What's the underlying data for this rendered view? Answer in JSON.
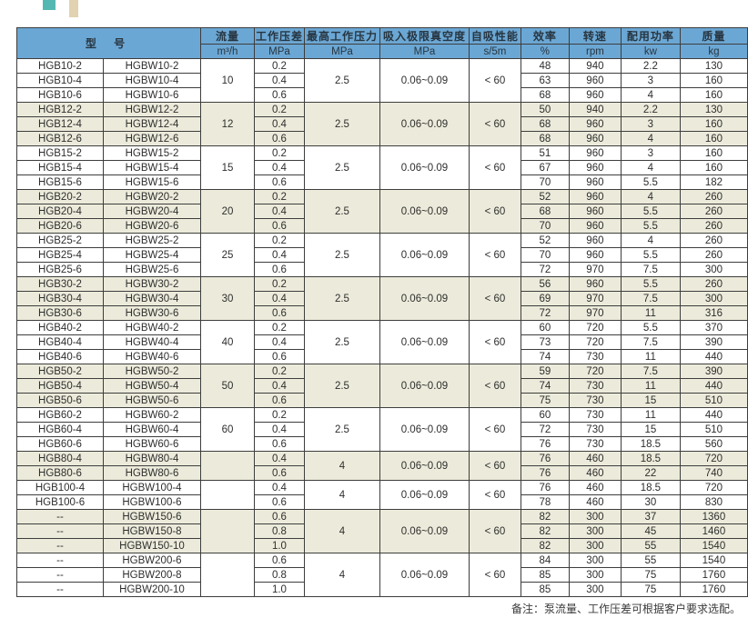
{
  "theme": {
    "header_blue": "#6ba7d4",
    "group_beige": "#ecebdb",
    "border_dark": "#3d3d3d",
    "decor_teal": "#54b8b2",
    "decor_tan": "#e2d2b0"
  },
  "note": "备注：泵流量、工作压差可根据客户要求选配。",
  "table": {
    "header": {
      "model": "型 号",
      "cols": [
        {
          "label": "流量",
          "unit": "m³/h"
        },
        {
          "label": "工作压差",
          "unit": "MPa"
        },
        {
          "label": "最高工作压力",
          "unit": "MPa"
        },
        {
          "label": "吸入极限真空度",
          "unit": "MPa"
        },
        {
          "label": "自吸性能",
          "unit": "s/5m"
        },
        {
          "label": "效率",
          "unit": "%"
        },
        {
          "label": "转速",
          "unit": "rpm"
        },
        {
          "label": "配用功率",
          "unit": "kw"
        },
        {
          "label": "质量",
          "unit": "kg"
        }
      ]
    },
    "groups": [
      {
        "flow": "10",
        "max_pressure": "2.5",
        "vacuum": "0.06~0.09",
        "self_priming": "< 60",
        "shaded": false,
        "rows": [
          {
            "model_a": "HGB10-2",
            "model_b": "HGBW10-2",
            "pressure_diff": "0.2",
            "efficiency": "48",
            "speed": "940",
            "power": "2.2",
            "mass": "130"
          },
          {
            "model_a": "HGB10-4",
            "model_b": "HGBW10-4",
            "pressure_diff": "0.4",
            "efficiency": "63",
            "speed": "960",
            "power": "3",
            "mass": "160"
          },
          {
            "model_a": "HGB10-6",
            "model_b": "HGBW10-6",
            "pressure_diff": "0.6",
            "efficiency": "68",
            "speed": "960",
            "power": "4",
            "mass": "160"
          }
        ]
      },
      {
        "flow": "12",
        "max_pressure": "2.5",
        "vacuum": "0.06~0.09",
        "self_priming": "< 60",
        "shaded": true,
        "rows": [
          {
            "model_a": "HGB12-2",
            "model_b": "HGBW12-2",
            "pressure_diff": "0.2",
            "efficiency": "50",
            "speed": "940",
            "power": "2.2",
            "mass": "130"
          },
          {
            "model_a": "HGB12-4",
            "model_b": "HGBW12-4",
            "pressure_diff": "0.4",
            "efficiency": "68",
            "speed": "960",
            "power": "3",
            "mass": "160"
          },
          {
            "model_a": "HGB12-6",
            "model_b": "HGBW12-6",
            "pressure_diff": "0.6",
            "efficiency": "68",
            "speed": "960",
            "power": "4",
            "mass": "160"
          }
        ]
      },
      {
        "flow": "15",
        "max_pressure": "2.5",
        "vacuum": "0.06~0.09",
        "self_priming": "< 60",
        "shaded": false,
        "rows": [
          {
            "model_a": "HGB15-2",
            "model_b": "HGBW15-2",
            "pressure_diff": "0.2",
            "efficiency": "51",
            "speed": "960",
            "power": "3",
            "mass": "160"
          },
          {
            "model_a": "HGB15-4",
            "model_b": "HGBW15-4",
            "pressure_diff": "0.4",
            "efficiency": "67",
            "speed": "960",
            "power": "4",
            "mass": "160"
          },
          {
            "model_a": "HGB15-6",
            "model_b": "HGBW15-6",
            "pressure_diff": "0.6",
            "efficiency": "70",
            "speed": "960",
            "power": "5.5",
            "mass": "182"
          }
        ]
      },
      {
        "flow": "20",
        "max_pressure": "2.5",
        "vacuum": "0.06~0.09",
        "self_priming": "< 60",
        "shaded": true,
        "rows": [
          {
            "model_a": "HGB20-2",
            "model_b": "HGBW20-2",
            "pressure_diff": "0.2",
            "efficiency": "52",
            "speed": "960",
            "power": "4",
            "mass": "260"
          },
          {
            "model_a": "HGB20-4",
            "model_b": "HGBW20-4",
            "pressure_diff": "0.4",
            "efficiency": "68",
            "speed": "960",
            "power": "5.5",
            "mass": "260"
          },
          {
            "model_a": "HGB20-6",
            "model_b": "HGBW20-6",
            "pressure_diff": "0.6",
            "efficiency": "70",
            "speed": "960",
            "power": "5.5",
            "mass": "260"
          }
        ]
      },
      {
        "flow": "25",
        "max_pressure": "2.5",
        "vacuum": "0.06~0.09",
        "self_priming": "< 60",
        "shaded": false,
        "rows": [
          {
            "model_a": "HGB25-2",
            "model_b": "HGBW25-2",
            "pressure_diff": "0.2",
            "efficiency": "52",
            "speed": "960",
            "power": "4",
            "mass": "260"
          },
          {
            "model_a": "HGB25-4",
            "model_b": "HGBW25-4",
            "pressure_diff": "0.4",
            "efficiency": "70",
            "speed": "960",
            "power": "5.5",
            "mass": "260"
          },
          {
            "model_a": "HGB25-6",
            "model_b": "HGBW25-6",
            "pressure_diff": "0.6",
            "efficiency": "72",
            "speed": "970",
            "power": "7.5",
            "mass": "300"
          }
        ]
      },
      {
        "flow": "30",
        "max_pressure": "2.5",
        "vacuum": "0.06~0.09",
        "self_priming": "< 60",
        "shaded": true,
        "rows": [
          {
            "model_a": "HGB30-2",
            "model_b": "HGBW30-2",
            "pressure_diff": "0.2",
            "efficiency": "56",
            "speed": "960",
            "power": "5.5",
            "mass": "260"
          },
          {
            "model_a": "HGB30-4",
            "model_b": "HGBW30-4",
            "pressure_diff": "0.4",
            "efficiency": "69",
            "speed": "970",
            "power": "7.5",
            "mass": "300"
          },
          {
            "model_a": "HGB30-6",
            "model_b": "HGBW30-6",
            "pressure_diff": "0.6",
            "efficiency": "72",
            "speed": "970",
            "power": "11",
            "mass": "316"
          }
        ]
      },
      {
        "flow": "40",
        "max_pressure": "2.5",
        "vacuum": "0.06~0.09",
        "self_priming": "< 60",
        "shaded": false,
        "rows": [
          {
            "model_a": "HGB40-2",
            "model_b": "HGBW40-2",
            "pressure_diff": "0.2",
            "efficiency": "60",
            "speed": "720",
            "power": "5.5",
            "mass": "370"
          },
          {
            "model_a": "HGB40-4",
            "model_b": "HGBW40-4",
            "pressure_diff": "0.4",
            "efficiency": "73",
            "speed": "720",
            "power": "7.5",
            "mass": "390"
          },
          {
            "model_a": "HGB40-6",
            "model_b": "HGBW40-6",
            "pressure_diff": "0.6",
            "efficiency": "74",
            "speed": "730",
            "power": "11",
            "mass": "440"
          }
        ]
      },
      {
        "flow": "50",
        "max_pressure": "2.5",
        "vacuum": "0.06~0.09",
        "self_priming": "< 60",
        "shaded": true,
        "rows": [
          {
            "model_a": "HGB50-2",
            "model_b": "HGBW50-2",
            "pressure_diff": "0.2",
            "efficiency": "59",
            "speed": "720",
            "power": "7.5",
            "mass": "390"
          },
          {
            "model_a": "HGB50-4",
            "model_b": "HGBW50-4",
            "pressure_diff": "0.4",
            "efficiency": "74",
            "speed": "730",
            "power": "11",
            "mass": "440"
          },
          {
            "model_a": "HGB50-6",
            "model_b": "HGBW50-6",
            "pressure_diff": "0.6",
            "efficiency": "75",
            "speed": "730",
            "power": "15",
            "mass": "510"
          }
        ]
      },
      {
        "flow": "60",
        "max_pressure": "2.5",
        "vacuum": "0.06~0.09",
        "self_priming": "< 60",
        "shaded": false,
        "rows": [
          {
            "model_a": "HGB60-2",
            "model_b": "HGBW60-2",
            "pressure_diff": "0.2",
            "efficiency": "60",
            "speed": "730",
            "power": "11",
            "mass": "440"
          },
          {
            "model_a": "HGB60-4",
            "model_b": "HGBW60-4",
            "pressure_diff": "0.4",
            "efficiency": "72",
            "speed": "730",
            "power": "15",
            "mass": "510"
          },
          {
            "model_a": "HGB60-6",
            "model_b": "HGBW60-6",
            "pressure_diff": "0.6",
            "efficiency": "76",
            "speed": "730",
            "power": "18.5",
            "mass": "560"
          }
        ]
      },
      {
        "flow": "",
        "max_pressure": "4",
        "vacuum": "0.06~0.09",
        "self_priming": "< 60",
        "shaded": true,
        "rows": [
          {
            "model_a": "HGB80-4",
            "model_b": "HGBW80-4",
            "pressure_diff": "0.4",
            "efficiency": "76",
            "speed": "460",
            "power": "18.5",
            "mass": "720"
          },
          {
            "model_a": "HGB80-6",
            "model_b": "HGBW80-6",
            "pressure_diff": "0.6",
            "efficiency": "76",
            "speed": "460",
            "power": "22",
            "mass": "740"
          }
        ]
      },
      {
        "flow": "",
        "max_pressure": "4",
        "vacuum": "0.06~0.09",
        "self_priming": "< 60",
        "shaded": false,
        "rows": [
          {
            "model_a": "HGB100-4",
            "model_b": "HGBW100-4",
            "pressure_diff": "0.4",
            "efficiency": "76",
            "speed": "460",
            "power": "18.5",
            "mass": "720"
          },
          {
            "model_a": "HGB100-6",
            "model_b": "HGBW100-6",
            "pressure_diff": "0.6",
            "efficiency": "78",
            "speed": "460",
            "power": "30",
            "mass": "830"
          }
        ]
      },
      {
        "flow": "",
        "max_pressure": "4",
        "vacuum": "0.06~0.09",
        "self_priming": "< 60",
        "shaded": true,
        "rows": [
          {
            "model_a": "--",
            "model_b": "HGBW150-6",
            "pressure_diff": "0.6",
            "efficiency": "82",
            "speed": "300",
            "power": "37",
            "mass": "1360"
          },
          {
            "model_a": "--",
            "model_b": "HGBW150-8",
            "pressure_diff": "0.8",
            "efficiency": "82",
            "speed": "300",
            "power": "45",
            "mass": "1460"
          },
          {
            "model_a": "--",
            "model_b": "HGBW150-10",
            "pressure_diff": "1.0",
            "efficiency": "82",
            "speed": "300",
            "power": "55",
            "mass": "1540"
          }
        ]
      },
      {
        "flow": "",
        "max_pressure": "4",
        "vacuum": "0.06~0.09",
        "self_priming": "< 60",
        "shaded": false,
        "rows": [
          {
            "model_a": "--",
            "model_b": "HGBW200-6",
            "pressure_diff": "0.6",
            "efficiency": "84",
            "speed": "300",
            "power": "55",
            "mass": "1540"
          },
          {
            "model_a": "--",
            "model_b": "HGBW200-8",
            "pressure_diff": "0.8",
            "efficiency": "85",
            "speed": "300",
            "power": "75",
            "mass": "1760"
          },
          {
            "model_a": "--",
            "model_b": "HGBW200-10",
            "pressure_diff": "1.0",
            "efficiency": "85",
            "speed": "300",
            "power": "75",
            "mass": "1760"
          }
        ]
      }
    ]
  }
}
